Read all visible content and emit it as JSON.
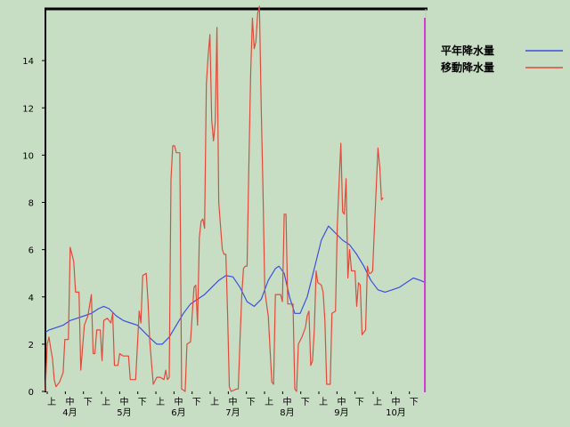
{
  "chart_data": {
    "type": "line",
    "ylim": [
      0,
      16
    ],
    "yticks": [
      0,
      2,
      4,
      6,
      8,
      10,
      12,
      14
    ],
    "xlim": [
      0,
      215
    ],
    "sub_ticks": [
      "上",
      "中",
      "下",
      "上",
      "中",
      "下",
      "上",
      "中",
      "下",
      "上",
      "中",
      "下",
      "上",
      "中",
      "下",
      "上",
      "中",
      "下",
      "上",
      "中",
      "下"
    ],
    "months": [
      "4月",
      "5月",
      "6月",
      "7月",
      "8月",
      "9月",
      "10月"
    ],
    "legend": [
      {
        "label": "平年降水量",
        "color": "#3a4fe0"
      },
      {
        "label": "移動降水量",
        "color": "#e04a3a"
      }
    ],
    "series": [
      {
        "name": "平年降水量",
        "color": "#3a4fe0",
        "points": [
          [
            0,
            2.5
          ],
          [
            2,
            2.6
          ],
          [
            6,
            2.7
          ],
          [
            10,
            2.8
          ],
          [
            14,
            3.0
          ],
          [
            18,
            3.1
          ],
          [
            22,
            3.2
          ],
          [
            26,
            3.3
          ],
          [
            30,
            3.5
          ],
          [
            33,
            3.6
          ],
          [
            36,
            3.5
          ],
          [
            40,
            3.2
          ],
          [
            44,
            3.0
          ],
          [
            48,
            2.9
          ],
          [
            52,
            2.8
          ],
          [
            56,
            2.5
          ],
          [
            60,
            2.2
          ],
          [
            63,
            2.0
          ],
          [
            66,
            2.0
          ],
          [
            70,
            2.3
          ],
          [
            74,
            2.8
          ],
          [
            78,
            3.3
          ],
          [
            82,
            3.7
          ],
          [
            86,
            3.9
          ],
          [
            90,
            4.1
          ],
          [
            94,
            4.4
          ],
          [
            98,
            4.7
          ],
          [
            102,
            4.9
          ],
          [
            106,
            4.85
          ],
          [
            110,
            4.4
          ],
          [
            114,
            3.8
          ],
          [
            118,
            3.6
          ],
          [
            122,
            3.9
          ],
          [
            126,
            4.7
          ],
          [
            130,
            5.2
          ],
          [
            132,
            5.3
          ],
          [
            135,
            5.0
          ],
          [
            138,
            4.0
          ],
          [
            141,
            3.3
          ],
          [
            144,
            3.3
          ],
          [
            148,
            4.0
          ],
          [
            152,
            5.2
          ],
          [
            156,
            6.4
          ],
          [
            160,
            7.0
          ],
          [
            164,
            6.7
          ],
          [
            168,
            6.4
          ],
          [
            172,
            6.2
          ],
          [
            176,
            5.8
          ],
          [
            180,
            5.3
          ],
          [
            184,
            4.7
          ],
          [
            188,
            4.3
          ],
          [
            192,
            4.2
          ],
          [
            196,
            4.3
          ],
          [
            200,
            4.4
          ],
          [
            204,
            4.6
          ],
          [
            208,
            4.8
          ],
          [
            212,
            4.7
          ],
          [
            215,
            4.6
          ]
        ]
      },
      {
        "name": "移動降水量",
        "color": "#e04a3a",
        "points": [
          [
            0,
            0
          ],
          [
            1,
            2.0
          ],
          [
            2,
            2.3
          ],
          [
            3,
            1.8
          ],
          [
            4,
            1.4
          ],
          [
            5,
            0.5
          ],
          [
            6,
            0.2
          ],
          [
            8,
            0.4
          ],
          [
            10,
            0.8
          ],
          [
            11,
            2.2
          ],
          [
            13,
            2.2
          ],
          [
            14,
            6.1
          ],
          [
            15,
            5.8
          ],
          [
            16,
            5.5
          ],
          [
            17,
            4.2
          ],
          [
            19,
            4.2
          ],
          [
            20,
            0.9
          ],
          [
            22,
            2.8
          ],
          [
            24,
            3.2
          ],
          [
            26,
            4.1
          ],
          [
            27,
            1.6
          ],
          [
            28,
            1.6
          ],
          [
            29,
            2.6
          ],
          [
            31,
            2.6
          ],
          [
            32,
            1.3
          ],
          [
            33,
            3.0
          ],
          [
            35,
            3.1
          ],
          [
            37,
            2.9
          ],
          [
            38,
            3.3
          ],
          [
            39,
            1.1
          ],
          [
            41,
            1.1
          ],
          [
            42,
            1.6
          ],
          [
            44,
            1.5
          ],
          [
            47,
            1.5
          ],
          [
            48,
            0.5
          ],
          [
            51,
            0.5
          ],
          [
            53,
            3.4
          ],
          [
            54,
            2.9
          ],
          [
            55,
            4.9
          ],
          [
            57,
            5.0
          ],
          [
            58,
            3.8
          ],
          [
            59,
            2.1
          ],
          [
            61,
            0.3
          ],
          [
            63,
            0.6
          ],
          [
            65,
            0.6
          ],
          [
            67,
            0.5
          ],
          [
            68,
            0.9
          ],
          [
            69,
            0.5
          ],
          [
            70,
            0.6
          ],
          [
            71,
            9.0
          ],
          [
            72,
            10.4
          ],
          [
            73,
            10.4
          ],
          [
            74,
            10.1
          ],
          [
            76,
            10.1
          ],
          [
            77,
            0.1
          ],
          [
            79,
            0.0
          ],
          [
            80,
            2.0
          ],
          [
            82,
            2.1
          ],
          [
            84,
            4.4
          ],
          [
            85,
            4.5
          ],
          [
            86,
            2.8
          ],
          [
            87,
            6.5
          ],
          [
            88,
            7.2
          ],
          [
            89,
            7.3
          ],
          [
            90,
            6.9
          ],
          [
            91,
            13.0
          ],
          [
            92,
            14.2
          ],
          [
            93,
            15.1
          ],
          [
            94,
            11.5
          ],
          [
            95,
            10.6
          ],
          [
            96,
            11.4
          ],
          [
            97,
            15.4
          ],
          [
            98,
            8.0
          ],
          [
            99,
            7.0
          ],
          [
            100,
            6.0
          ],
          [
            101,
            5.8
          ],
          [
            102,
            5.8
          ],
          [
            103,
            3.2
          ],
          [
            104,
            0.2
          ],
          [
            105,
            0.0
          ],
          [
            108,
            0.1
          ],
          [
            109,
            0.1
          ],
          [
            110,
            2.2
          ],
          [
            111,
            4.1
          ],
          [
            112,
            5.2
          ],
          [
            113,
            5.3
          ],
          [
            114,
            5.3
          ],
          [
            115,
            9.5
          ],
          [
            116,
            13.4
          ],
          [
            117,
            15.8
          ],
          [
            118,
            14.5
          ],
          [
            119,
            14.8
          ],
          [
            120,
            16.0
          ],
          [
            121,
            16.3
          ],
          [
            122,
            12.0
          ],
          [
            123,
            8.5
          ],
          [
            124,
            4.3
          ],
          [
            125,
            3.7
          ],
          [
            126,
            3.2
          ],
          [
            128,
            0.4
          ],
          [
            129,
            0.3
          ],
          [
            130,
            4.1
          ],
          [
            133,
            4.1
          ],
          [
            134,
            3.8
          ],
          [
            135,
            7.5
          ],
          [
            136,
            7.5
          ],
          [
            137,
            3.7
          ],
          [
            140,
            3.7
          ],
          [
            141,
            0.1
          ],
          [
            142,
            0.0
          ],
          [
            143,
            2.0
          ],
          [
            145,
            2.3
          ],
          [
            147,
            2.7
          ],
          [
            148,
            3.2
          ],
          [
            149,
            3.4
          ],
          [
            150,
            1.1
          ],
          [
            151,
            1.3
          ],
          [
            152,
            2.6
          ],
          [
            153,
            5.1
          ],
          [
            154,
            4.6
          ],
          [
            156,
            4.5
          ],
          [
            157,
            4.2
          ],
          [
            158,
            3.0
          ],
          [
            159,
            0.3
          ],
          [
            161,
            0.3
          ],
          [
            162,
            3.3
          ],
          [
            164,
            3.4
          ],
          [
            165,
            7.0
          ],
          [
            166,
            8.8
          ],
          [
            167,
            10.5
          ],
          [
            168,
            7.6
          ],
          [
            169,
            7.5
          ],
          [
            170,
            9.0
          ],
          [
            171,
            4.8
          ],
          [
            172,
            6.0
          ],
          [
            173,
            5.1
          ],
          [
            175,
            5.1
          ],
          [
            176,
            3.6
          ],
          [
            177,
            4.6
          ],
          [
            178,
            4.5
          ],
          [
            179,
            2.4
          ],
          [
            181,
            2.6
          ],
          [
            182,
            5.3
          ],
          [
            183,
            5.0
          ],
          [
            184,
            5.0
          ],
          [
            185,
            5.1
          ],
          [
            186,
            6.9
          ],
          [
            188,
            10.3
          ],
          [
            189,
            9.5
          ],
          [
            190,
            8.1
          ],
          [
            191,
            8.2
          ]
        ]
      }
    ]
  }
}
